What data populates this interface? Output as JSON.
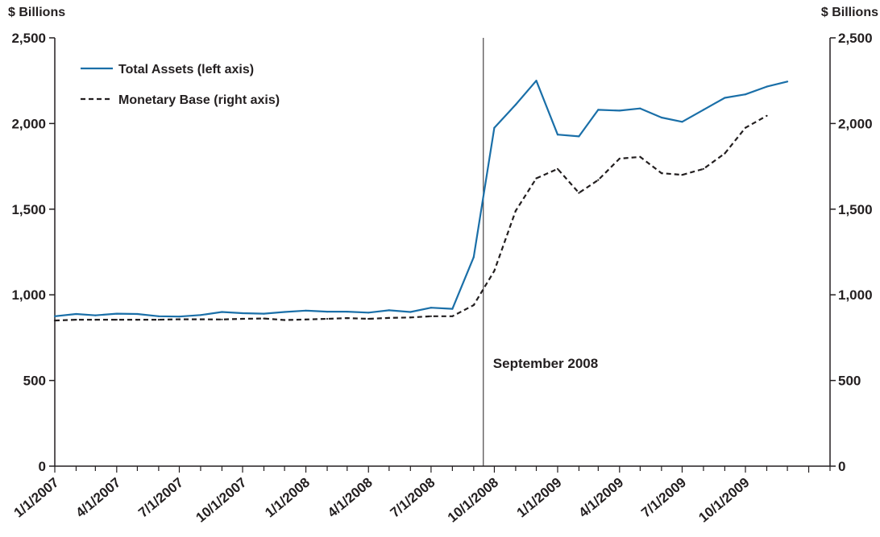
{
  "chart_data": {
    "type": "line",
    "title": "",
    "left_axis_unit": "$ Billions",
    "right_axis_unit": "$ Billions",
    "ylim": [
      0,
      2500
    ],
    "y_ticks": [
      "0",
      "500",
      "1,000",
      "1,500",
      "2,000",
      "2,500"
    ],
    "y_tick_values": [
      0,
      500,
      1000,
      1500,
      2000,
      2500
    ],
    "x_start": "1/1/2007",
    "x_end": "2/1/2010",
    "x_tick_labels": [
      "1/1/2007",
      "4/1/2007",
      "7/1/2007",
      "10/1/2007",
      "1/1/2008",
      "4/1/2008",
      "7/1/2008",
      "10/1/2008",
      "1/1/2009",
      "4/1/2009",
      "7/1/2009",
      "10/1/2009"
    ],
    "grid": false,
    "legend_position": "top-left",
    "series": [
      {
        "name": "Total Assets (left axis)",
        "axis": "left",
        "style": "solid",
        "color": "#1a6fa8",
        "x": [
          "1/1/2007",
          "2/1/2007",
          "3/1/2007",
          "4/1/2007",
          "5/1/2007",
          "6/1/2007",
          "7/1/2007",
          "8/1/2007",
          "9/1/2007",
          "10/1/2007",
          "11/1/2007",
          "12/1/2007",
          "1/1/2008",
          "2/1/2008",
          "3/1/2008",
          "4/1/2008",
          "5/1/2008",
          "6/1/2008",
          "7/1/2008",
          "8/1/2008",
          "9/1/2008",
          "10/1/2008",
          "11/1/2008",
          "12/1/2008",
          "1/1/2009",
          "2/1/2009",
          "3/1/2009",
          "4/1/2009",
          "5/1/2009",
          "6/1/2009",
          "7/1/2009",
          "8/1/2009",
          "9/1/2009",
          "10/1/2009",
          "11/1/2009",
          "12/1/2009",
          "1/1/2010"
        ],
        "values": [
          875,
          888,
          880,
          890,
          888,
          875,
          873,
          882,
          900,
          893,
          890,
          900,
          908,
          902,
          902,
          896,
          910,
          900,
          925,
          918,
          1220,
          1975,
          2110,
          2250,
          1935,
          1925,
          2080,
          2075,
          2088,
          2035,
          2010,
          2080,
          2150,
          2170,
          2215,
          2245,
          null
        ]
      },
      {
        "name": "Monetary Base (right axis)",
        "axis": "right",
        "style": "dashed",
        "color": "#231f20",
        "x": [
          "1/1/2007",
          "2/1/2007",
          "3/1/2007",
          "4/1/2007",
          "5/1/2007",
          "6/1/2007",
          "7/1/2007",
          "8/1/2007",
          "9/1/2007",
          "10/1/2007",
          "11/1/2007",
          "12/1/2007",
          "1/1/2008",
          "2/1/2008",
          "3/1/2008",
          "4/1/2008",
          "5/1/2008",
          "6/1/2008",
          "7/1/2008",
          "8/1/2008",
          "9/1/2008",
          "10/1/2008",
          "11/1/2008",
          "12/1/2008",
          "1/1/2009",
          "2/1/2009",
          "3/1/2009",
          "4/1/2009",
          "5/1/2009",
          "6/1/2009",
          "7/1/2009",
          "8/1/2009",
          "9/1/2009",
          "10/1/2009",
          "11/1/2009",
          "12/1/2009",
          "1/1/2010"
        ],
        "values": [
          850,
          855,
          855,
          855,
          855,
          855,
          857,
          857,
          856,
          860,
          862,
          853,
          856,
          860,
          864,
          860,
          865,
          868,
          875,
          875,
          940,
          1140,
          1490,
          1680,
          1735,
          1595,
          1670,
          1795,
          1805,
          1710,
          1700,
          1735,
          1825,
          1975,
          2045,
          null,
          null
        ]
      }
    ],
    "annotations": [
      {
        "x": "9/15/2008",
        "type": "vertical-line",
        "label": "September 2008"
      }
    ]
  }
}
